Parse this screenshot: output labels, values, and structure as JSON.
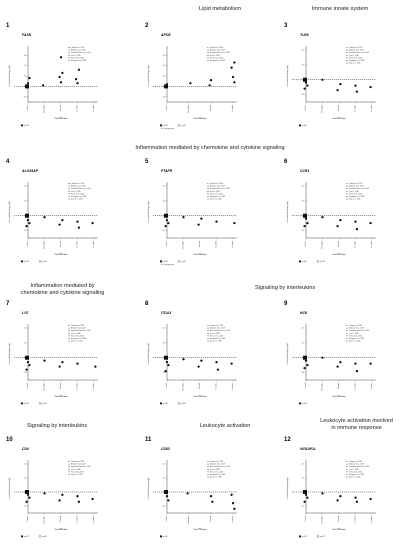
{
  "sections": [
    {
      "text": "Lipid metabolism"
    },
    {
      "text": "Immune innate system"
    },
    {
      "text": "Inflammation mediated by chemokine and cytokine signaling"
    },
    {
      "text": "Inflammation mediated by\nchemokine and cytokine signaling"
    },
    {
      "text": "Signaling by interleukins"
    },
    {
      "text": "Signaling by interleukins"
    },
    {
      "text": "Leukocyte activation"
    },
    {
      "text": "Leukocyte activation involved\nin immune response"
    }
  ],
  "chart_data": [
    {
      "type": "scatter",
      "panel": "1",
      "gene": "FASN",
      "ylabel": "Corrected fold change\n(log2)",
      "xlabel": "Post-PTSD time",
      "categories": [
        "Control",
        "Immediate",
        "1 month",
        "3 months",
        "6 months"
      ],
      "studies": [
        "Ortega et al., 2019",
        "Bačković et al., 2019",
        "González-Pérez et al., 2016",
        "Li et al., 2018",
        "Pierce et al., 2016",
        "Rosaguin et al., 2018"
      ],
      "legend": [
        "p<0.05"
      ],
      "note": "",
      "ylim": [
        -1.5,
        3.5
      ],
      "series": [
        {
          "name": "p<0.05",
          "x": [
            0,
            0,
            0,
            1,
            2,
            2,
            2,
            2,
            3,
            3,
            3
          ],
          "y": [
            0,
            0.3,
            0.8,
            0.1,
            2.8,
            1.3,
            0.9,
            0.4,
            1.6,
            0.7,
            0.3
          ]
        }
      ]
    },
    {
      "type": "scatter",
      "panel": "2",
      "gene": "APOE",
      "ylabel": "Corrected fold change\n(log2)",
      "xlabel": "Post-PTSD time",
      "categories": [
        "Control",
        "Immediate",
        "1 month",
        "3 months"
      ],
      "studies": [
        "Ortega et al., 2019",
        "Bačković et al., 2019",
        "González-Pérez et al., 2016",
        "Li et al., 2018",
        "Pierce et al., 2016",
        "Rosaguin et al., 2018"
      ],
      "legend": [
        "p<0.05",
        "p<0.05"
      ],
      "note": "NS: not significant",
      "ylim": [
        -1.5,
        3.5
      ],
      "series": [
        {
          "name": "p<0.05",
          "x": [
            0,
            0,
            1,
            2,
            2,
            3,
            3,
            3,
            3
          ],
          "y": [
            0,
            0.2,
            0.3,
            0.1,
            0.6,
            2.3,
            1.8,
            0.9,
            0.4
          ]
        }
      ]
    },
    {
      "type": "scatter",
      "panel": "3",
      "gene": "TLR8",
      "ylabel": "Corrected fold change\n(log2)",
      "xlabel": "Post-PTSD time",
      "categories": [
        "Control",
        "Immediate",
        "1 month",
        "3 months",
        "6 months"
      ],
      "studies": [
        "Ortega et al., 2019",
        "Bačković et al., 2019",
        "González-Pérez et al., 2016",
        "Li et al., 2018",
        "Pierce et al., 2016",
        "Rosaguin et al., 2018",
        "Xiao et al., 2016"
      ],
      "legend": [
        "p<0.05"
      ],
      "note": "",
      "ylim": [
        -1.5,
        2
      ],
      "series": [
        {
          "name": "p<0.05",
          "x": [
            0,
            0,
            0,
            0,
            1,
            2,
            2,
            3,
            3,
            4
          ],
          "y": [
            0,
            -0.2,
            -0.4,
            -0.6,
            0,
            -0.3,
            -0.7,
            -0.4,
            -0.8,
            -0.5
          ]
        }
      ]
    },
    {
      "type": "scatter",
      "panel": "4",
      "gene": "ALOX5AP",
      "ylabel": "Corrected fold change\n(log2)",
      "xlabel": "Post-PTSD time",
      "categories": [
        "Control",
        "Immediate",
        "1 month",
        "3 months",
        "6 months"
      ],
      "studies": [
        "Ortega et al., 2019",
        "Bačković et al., 2019",
        "González-Pérez et al., 2016",
        "Li et al., 2018",
        "Pierce et al., 2016",
        "Rosaguin et al., 2018",
        "Xiao et al., 2016"
      ],
      "legend": [
        "p<0.05",
        "p<0.05"
      ],
      "note": "",
      "ylim": [
        -1.5,
        2
      ],
      "series": [
        {
          "name": "p<0.05",
          "x": [
            0,
            0,
            0,
            0,
            1,
            2,
            2,
            3,
            3,
            4
          ],
          "y": [
            0,
            -0.3,
            -0.5,
            -0.7,
            -0.1,
            -0.3,
            -0.6,
            -0.4,
            -0.8,
            -0.5
          ]
        }
      ]
    },
    {
      "type": "scatter",
      "panel": "5",
      "gene": "PTAFR",
      "ylabel": "Corrected fold change\n(log2)",
      "xlabel": "Post-PTSD time",
      "categories": [
        "Control",
        "Immediate",
        "1 month",
        "3 months",
        "6 months"
      ],
      "studies": [
        "Ortega et al., 2019",
        "Bačković et al., 2019",
        "González-Pérez et al., 2016",
        "Li et al., 2018",
        "Pierce et al., 2016",
        "Rosaguin et al., 2018",
        "Xiao et al., 2016"
      ],
      "legend": [
        "p<0.05",
        "p<0.05"
      ],
      "note": "NS: not significant",
      "ylim": [
        -1.5,
        2
      ],
      "series": [
        {
          "name": "p<0.05",
          "x": [
            0,
            0,
            0,
            0,
            1,
            2,
            2,
            3,
            4
          ],
          "y": [
            0,
            -0.3,
            -0.5,
            -0.7,
            -0.1,
            -0.2,
            -0.6,
            -0.4,
            -0.5
          ]
        }
      ]
    },
    {
      "type": "scatter",
      "panel": "6",
      "gene": "CCR1",
      "ylabel": "Corrected fold change\n(log2)",
      "xlabel": "Post-PTSD time",
      "categories": [
        "Control",
        "Immediate",
        "1 month",
        "3 months",
        "6 months"
      ],
      "studies": [
        "Ortega et al., 2019",
        "Bačković et al., 2019",
        "González-Pérez et al., 2016",
        "Li et al., 2018",
        "Pierce et al., 2016",
        "Rosaguin et al., 2018",
        "Xiao et al., 2016"
      ],
      "legend": [
        "p<0.05",
        "p<0.05"
      ],
      "note": "",
      "ylim": [
        -1.5,
        2
      ],
      "series": [
        {
          "name": "p<0.05",
          "x": [
            0,
            0,
            0,
            0,
            1,
            2,
            2,
            3,
            3,
            4
          ],
          "y": [
            0,
            -0.2,
            -0.5,
            -0.7,
            -0.1,
            -0.3,
            -0.7,
            -0.4,
            -0.9,
            -0.5
          ]
        }
      ]
    },
    {
      "type": "scatter",
      "panel": "7",
      "gene": "LYZ",
      "ylabel": "Corrected fold change\n(log2)",
      "xlabel": "Post-PTSD time",
      "categories": [
        "Control",
        "Immediate",
        "1 month",
        "3 months",
        "6 months"
      ],
      "studies": [
        "Ortega et al., 2019",
        "Bačković et al., 2019",
        "González-Pérez et al., 2016",
        "Li et al., 2018",
        "Pierce et al., 2016",
        "Rosaguin et al., 2018",
        "Xiao et al., 2016"
      ],
      "legend": [
        "p<0.05",
        "p<0.05"
      ],
      "note": "",
      "ylim": [
        -1.5,
        2
      ],
      "series": [
        {
          "name": "p<0.05",
          "x": [
            0,
            0,
            0,
            0,
            1,
            2,
            2,
            3,
            4
          ],
          "y": [
            0,
            -0.3,
            -0.5,
            -0.8,
            -0.2,
            -0.3,
            -0.6,
            -0.4,
            -0.6
          ]
        }
      ]
    },
    {
      "type": "scatter",
      "panel": "8",
      "gene": "ITGAX",
      "ylabel": "Corrected fold change\n(log2)",
      "xlabel": "Post-PTSD time",
      "categories": [
        "Control",
        "Immediate",
        "1 month",
        "3 months",
        "6 months"
      ],
      "studies": [
        "Ortega et al., 2019",
        "Bačković et al., 2019",
        "González-Pérez et al., 2016",
        "Li et al., 2018",
        "Pierce et al., 2016",
        "Rosaguin et al., 2018",
        "Xiao et al., 2016"
      ],
      "legend": [
        "p<0.05",
        "p<0.05"
      ],
      "note": "",
      "ylim": [
        -1.5,
        2
      ],
      "series": [
        {
          "name": "p<0.05",
          "x": [
            0,
            0,
            0,
            0,
            1,
            2,
            2,
            3,
            3,
            4
          ],
          "y": [
            0,
            -0.3,
            -0.5,
            -0.9,
            -0.1,
            -0.2,
            -0.6,
            -0.3,
            -0.8,
            -0.4
          ]
        }
      ]
    },
    {
      "type": "scatter",
      "panel": "9",
      "gene": "HCK",
      "ylabel": "Corrected fold change\n(log2)",
      "xlabel": "Post-PTSD time",
      "categories": [
        "Control",
        "Immediate",
        "1 month",
        "3 months",
        "6 months"
      ],
      "studies": [
        "Ortega et al., 2019",
        "Bačković et al., 2019",
        "González-Pérez et al., 2016",
        "Li et al., 2018",
        "Pierce et al., 2016",
        "Rosaguin et al., 2018",
        "Xiao et al., 2016"
      ],
      "legend": [
        "p<0.05"
      ],
      "note": "",
      "ylim": [
        -1.5,
        2
      ],
      "series": [
        {
          "name": "p<0.05",
          "x": [
            0,
            0,
            0,
            0,
            1,
            2,
            2,
            3,
            3,
            4
          ],
          "y": [
            0,
            -0.2,
            -0.5,
            -0.7,
            0,
            -0.3,
            -0.6,
            -0.4,
            -0.9,
            -0.4
          ]
        }
      ]
    },
    {
      "type": "scatter",
      "panel": "10",
      "gene": "CD4",
      "ylabel": "Corrected fold change\n(log2)",
      "xlabel": "Post-PTSD time",
      "categories": [
        "Control",
        "Immediate",
        "1 month",
        "3 months",
        "6 months"
      ],
      "studies": [
        "Ortega et al., 2019",
        "Bačković et al., 2019",
        "González-Pérez et al., 2016",
        "Li et al., 2018",
        "Pierce et al., 2016",
        "Xiao et al., 2016"
      ],
      "legend": [
        "p<0.05",
        "p<0.05"
      ],
      "note": "",
      "ylim": [
        -1.5,
        2
      ],
      "series": [
        {
          "name": "p<0.05",
          "x": [
            0,
            0,
            0,
            0,
            1,
            2,
            2,
            3,
            3,
            4
          ],
          "y": [
            0,
            -0.2,
            -0.4,
            -0.7,
            -0.1,
            -0.2,
            -0.6,
            -0.3,
            -0.7,
            -0.5
          ]
        }
      ]
    },
    {
      "type": "scatter",
      "panel": "11",
      "gene": "CD83",
      "ylabel": "Corrected fold change\n(log2)",
      "xlabel": "Post-PTSD time",
      "categories": [
        "Control",
        "Immediate",
        "1 month",
        "3 months"
      ],
      "studies": [
        "Ortega et al., 2019",
        "Bačković et al., 2019",
        "González-Pérez et al., 2016",
        "Li et al., 2018",
        "Pierce et al., 2016",
        "Rosaguin et al., 2018",
        "Xiao et al., 2016"
      ],
      "legend": [
        "p<0.05"
      ],
      "note": "",
      "ylim": [
        -1.5,
        2
      ],
      "series": [
        {
          "name": "p<0.05",
          "x": [
            0,
            0,
            0,
            1,
            2,
            2,
            3,
            3,
            3
          ],
          "y": [
            0,
            -0.3,
            -0.6,
            -0.1,
            -0.3,
            -0.7,
            -0.2,
            -0.8,
            -1.2
          ]
        }
      ]
    },
    {
      "type": "scatter",
      "panel": "12",
      "gene": "NCKAP1L",
      "ylabel": "Corrected fold change\n(log2)",
      "xlabel": "Post-PTSD time",
      "categories": [
        "Control",
        "Immediate",
        "1 month",
        "3 months",
        "6 months"
      ],
      "studies": [
        "Ortega et al., 2019",
        "Bačković et al., 2019",
        "González-Pérez et al., 2016",
        "Li et al., 2018",
        "Pierce et al., 2016",
        "Rosaguin et al., 2018",
        "Xiao et al., 2016"
      ],
      "legend": [
        "p<0.05",
        "p<0.05"
      ],
      "note": "",
      "ylim": [
        -1.5,
        2
      ],
      "series": [
        {
          "name": "p<0.05",
          "x": [
            0,
            0,
            0,
            0,
            1,
            2,
            2,
            3,
            3,
            4
          ],
          "y": [
            0,
            -0.2,
            -0.4,
            -0.7,
            -0.1,
            -0.3,
            -0.6,
            -0.4,
            -0.7,
            -0.5
          ]
        }
      ]
    }
  ]
}
